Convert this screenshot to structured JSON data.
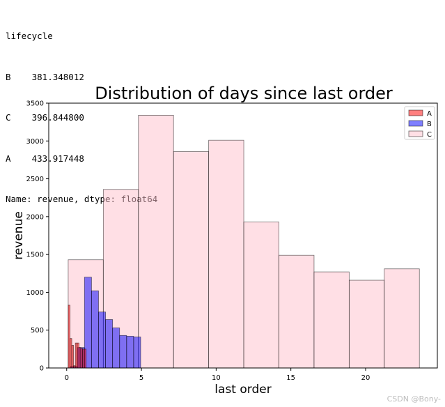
{
  "console": {
    "lines": [
      "lifecycle",
      "B    381.348012",
      "C    396.844800",
      "A    433.917448",
      "Name: revenue, dtype: float64"
    ]
  },
  "watermark": "CSDN @Bony-",
  "chart_data": {
    "type": "histogram",
    "title": "Distribution of days since last order",
    "xlabel": "last order",
    "ylabel": "revenue",
    "xlim": [
      -1.2,
      24.8
    ],
    "ylim": [
      0,
      3500
    ],
    "xticks": [
      0,
      5,
      10,
      15,
      20
    ],
    "yticks": [
      0,
      500,
      1000,
      1500,
      2000,
      2500,
      3000,
      3500
    ],
    "grid": false,
    "legend_position": "upper right",
    "series": [
      {
        "name": "A",
        "color": "#ff0000",
        "alpha": 0.5,
        "bins": [
          {
            "x0": 0.1,
            "x1": 0.22,
            "value": 830
          },
          {
            "x0": 0.22,
            "x1": 0.34,
            "value": 390
          },
          {
            "x0": 0.34,
            "x1": 0.46,
            "value": 300
          },
          {
            "x0": 0.46,
            "x1": 0.58,
            "value": 30
          },
          {
            "x0": 0.58,
            "x1": 0.7,
            "value": 330
          },
          {
            "x0": 0.7,
            "x1": 0.82,
            "value": 330
          },
          {
            "x0": 0.82,
            "x1": 0.94,
            "value": 270
          },
          {
            "x0": 0.94,
            "x1": 1.06,
            "value": 260
          },
          {
            "x0": 1.06,
            "x1": 1.18,
            "value": 250
          },
          {
            "x0": 1.18,
            "x1": 1.3,
            "value": 250
          }
        ]
      },
      {
        "name": "B",
        "color": "#0000ff",
        "alpha": 0.5,
        "bins": [
          {
            "x0": 0.25,
            "x1": 0.72,
            "value": 20
          },
          {
            "x0": 0.72,
            "x1": 1.19,
            "value": 270
          },
          {
            "x0": 1.19,
            "x1": 1.66,
            "value": 1200
          },
          {
            "x0": 1.66,
            "x1": 2.13,
            "value": 1020
          },
          {
            "x0": 2.13,
            "x1": 2.6,
            "value": 740
          },
          {
            "x0": 2.6,
            "x1": 3.07,
            "value": 640
          },
          {
            "x0": 3.07,
            "x1": 3.54,
            "value": 530
          },
          {
            "x0": 3.54,
            "x1": 4.01,
            "value": 430
          },
          {
            "x0": 4.01,
            "x1": 4.48,
            "value": 420
          },
          {
            "x0": 4.48,
            "x1": 4.95,
            "value": 410
          }
        ]
      },
      {
        "name": "C",
        "color": "#ffc0cb",
        "alpha": 0.5,
        "bins": [
          {
            "x0": 0.1,
            "x1": 2.45,
            "value": 1430
          },
          {
            "x0": 2.45,
            "x1": 4.8,
            "value": 2360
          },
          {
            "x0": 4.8,
            "x1": 7.15,
            "value": 3340
          },
          {
            "x0": 7.15,
            "x1": 9.5,
            "value": 2860
          },
          {
            "x0": 9.5,
            "x1": 11.85,
            "value": 3010
          },
          {
            "x0": 11.85,
            "x1": 14.2,
            "value": 1930
          },
          {
            "x0": 14.2,
            "x1": 16.55,
            "value": 1490
          },
          {
            "x0": 16.55,
            "x1": 18.9,
            "value": 1270
          },
          {
            "x0": 18.9,
            "x1": 21.25,
            "value": 1160
          },
          {
            "x0": 21.25,
            "x1": 23.6,
            "value": 1310
          }
        ]
      }
    ],
    "draw_order": [
      "C",
      "B",
      "A"
    ],
    "legend_order": [
      "A",
      "B",
      "C"
    ]
  }
}
